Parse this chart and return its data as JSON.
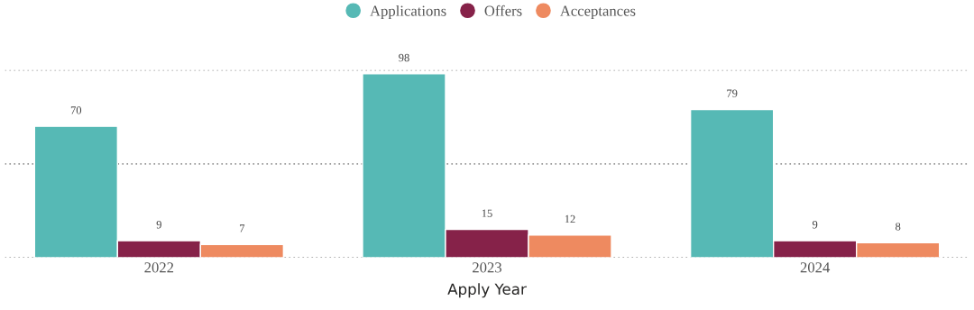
{
  "chart_data": {
    "type": "bar",
    "xlabel": "Apply Year",
    "categories": [
      "2022",
      "2023",
      "2024"
    ],
    "series": [
      {
        "name": "Applications",
        "color": "#56b9b5",
        "values": [
          70,
          98,
          79
        ]
      },
      {
        "name": "Offers",
        "color": "#862249",
        "values": [
          9,
          15,
          9
        ]
      },
      {
        "name": "Acceptances",
        "color": "#ee8a60",
        "values": [
          7,
          12,
          8
        ]
      }
    ],
    "ylim": [
      0,
      100
    ],
    "yticks": [
      {
        "value": 0,
        "label": null
      },
      {
        "value": 50,
        "label": null
      },
      {
        "value": 100,
        "label": null
      }
    ],
    "tick_labels": "x",
    "grid": "y",
    "legend": "top",
    "data_labels": true
  }
}
